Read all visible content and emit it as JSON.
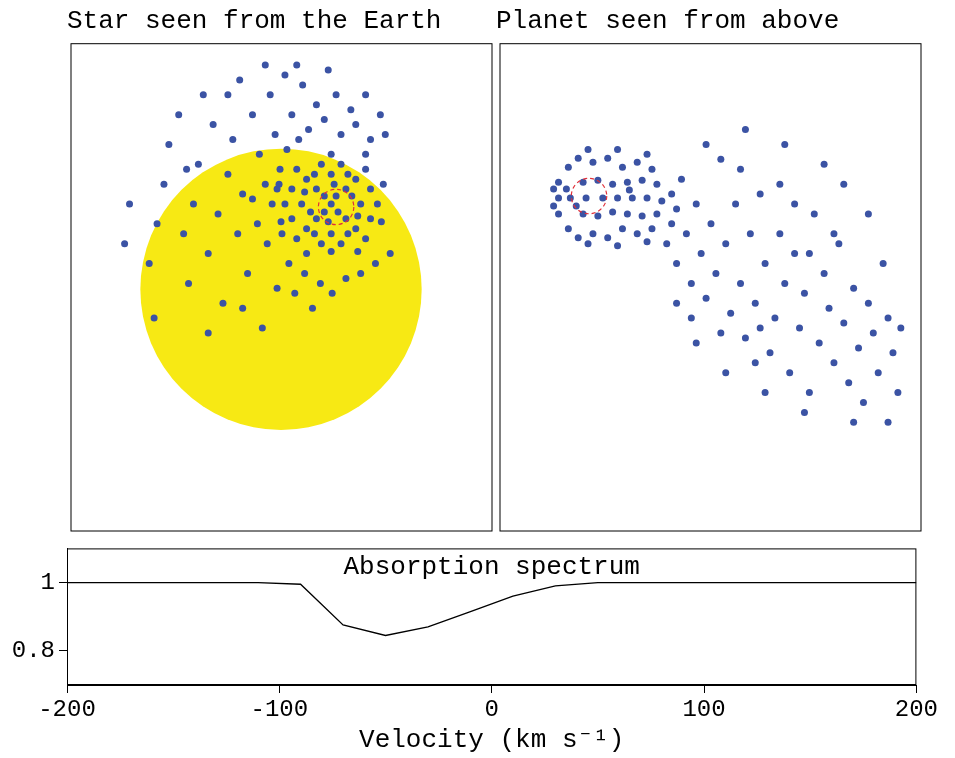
{
  "chart_data": [
    {
      "type": "scatter",
      "title": "Star seen from the Earth",
      "tick_labels": false,
      "xlim": [
        0,
        429
      ],
      "ylim": [
        0,
        492
      ],
      "series": [
        {
          "type": "circle",
          "color": "#f7e914",
          "center": [
            214,
            244
          ],
          "radius": 143
        },
        {
          "type": "scatter",
          "color": "#3b53a4",
          "values": [
            [
              265,
              330
            ],
            [
              250,
              345
            ],
            [
              280,
              345
            ],
            [
              250,
              315
            ],
            [
              280,
              315
            ],
            [
              265,
              360
            ],
            [
              265,
              300
            ],
            [
              235,
              330
            ],
            [
              295,
              330
            ],
            [
              240,
              355
            ],
            [
              290,
              355
            ],
            [
              240,
              305
            ],
            [
              290,
              305
            ],
            [
              255,
              370
            ],
            [
              275,
              370
            ],
            [
              255,
              290
            ],
            [
              275,
              290
            ],
            [
              225,
              345
            ],
            [
              305,
              345
            ],
            [
              225,
              315
            ],
            [
              305,
              315
            ],
            [
              230,
              365
            ],
            [
              300,
              365
            ],
            [
              230,
              295
            ],
            [
              300,
              295
            ],
            [
              258,
              338
            ],
            [
              272,
              322
            ],
            [
              244,
              322
            ],
            [
              286,
              338
            ],
            [
              262,
              312
            ],
            [
              268,
              350
            ],
            [
              248,
              300
            ],
            [
              282,
              300
            ],
            [
              248,
              360
            ],
            [
              282,
              360
            ],
            [
              312,
              330
            ],
            [
              218,
              330
            ],
            [
              265,
              380
            ],
            [
              265,
              282
            ],
            [
              240,
              280
            ],
            [
              292,
              282
            ],
            [
              212,
              350
            ],
            [
              318,
              350
            ],
            [
              214,
              312
            ],
            [
              316,
              312
            ],
            [
              270,
              338
            ],
            [
              258,
              322
            ],
            [
              238,
              342
            ],
            [
              292,
              318
            ],
            [
              300,
              380
            ],
            [
              55,
              290
            ],
            [
              80,
              270
            ],
            [
              85,
              215
            ],
            [
              95,
              350
            ],
            [
              100,
              390
            ],
            [
              110,
              420
            ],
            [
              115,
              300
            ],
            [
              120,
              250
            ],
            [
              125,
              330
            ],
            [
              130,
              370
            ],
            [
              135,
              440
            ],
            [
              140,
              280
            ],
            [
              145,
              410
            ],
            [
              150,
              320
            ],
            [
              155,
              230
            ],
            [
              160,
              360
            ],
            [
              165,
              395
            ],
            [
              170,
              300
            ],
            [
              172,
              455
            ],
            [
              175,
              340
            ],
            [
              180,
              260
            ],
            [
              185,
              420
            ],
            [
              190,
              310
            ],
            [
              192,
              380
            ],
            [
              195,
              205
            ],
            [
              198,
              350
            ],
            [
              200,
              290
            ],
            [
              203,
              440
            ],
            [
              205,
              330
            ],
            [
              208,
              400
            ],
            [
              210,
              245
            ],
            [
              213,
              365
            ],
            [
              215,
              300
            ],
            [
              218,
              460
            ],
            [
              220,
              385
            ],
            [
              222,
              270
            ],
            [
              225,
              420
            ],
            [
              228,
              240
            ],
            [
              232,
              395
            ],
            [
              236,
              450
            ],
            [
              238,
              260
            ],
            [
              242,
              405
            ],
            [
              246,
              225
            ],
            [
              250,
              430
            ],
            [
              254,
              250
            ],
            [
              258,
              415
            ],
            [
              262,
              465
            ],
            [
              266,
              240
            ],
            [
              270,
              440
            ],
            [
              275,
              400
            ],
            [
              280,
              255
            ],
            [
              285,
              425
            ],
            [
              290,
              410
            ],
            [
              295,
              260
            ],
            [
              300,
              440
            ],
            [
              305,
              395
            ],
            [
              310,
              270
            ],
            [
              315,
              420
            ],
            [
              320,
              400
            ],
            [
              325,
              280
            ],
            [
              140,
              200
            ],
            [
              175,
              225
            ],
            [
              118,
              365
            ],
            [
              160,
              440
            ],
            [
              88,
              310
            ],
            [
              198,
              470
            ],
            [
              230,
              470
            ],
            [
              60,
              330
            ],
            [
              210,
              345
            ],
            [
              185,
              335
            ]
          ]
        },
        {
          "type": "circle",
          "color": "#e0303a",
          "line_style": "dashed",
          "center": [
            270,
            327
          ],
          "radius": 18
        }
      ]
    },
    {
      "type": "scatter",
      "title": "Planet seen from above",
      "tick_labels": false,
      "xlim": [
        0,
        429
      ],
      "ylim": [
        0,
        492
      ],
      "series": [
        {
          "type": "scatter",
          "color": "#3b53a4",
          "values": [
            [
              60,
              336
            ],
            [
              60,
              320
            ],
            [
              60,
              352
            ],
            [
              70,
              305
            ],
            [
              70,
              367
            ],
            [
              72,
              336
            ],
            [
              80,
              296
            ],
            [
              80,
              376
            ],
            [
              85,
              320
            ],
            [
              85,
              352
            ],
            [
              88,
              336
            ],
            [
              95,
              300
            ],
            [
              95,
              372
            ],
            [
              100,
              318
            ],
            [
              100,
              354
            ],
            [
              105,
              336
            ],
            [
              110,
              296
            ],
            [
              110,
              376
            ],
            [
              115,
              322
            ],
            [
              115,
              350
            ],
            [
              120,
              336
            ],
            [
              125,
              305
            ],
            [
              125,
              367
            ],
            [
              130,
              320
            ],
            [
              130,
              352
            ],
            [
              135,
              336
            ],
            [
              140,
              300
            ],
            [
              140,
              372
            ],
            [
              145,
              318
            ],
            [
              145,
              354
            ],
            [
              150,
              336
            ],
            [
              155,
              305
            ],
            [
              155,
              365
            ],
            [
              160,
              320
            ],
            [
              160,
              350
            ],
            [
              165,
              333
            ],
            [
              90,
              385
            ],
            [
              120,
              385
            ],
            [
              150,
              380
            ],
            [
              90,
              290
            ],
            [
              120,
              288
            ],
            [
              150,
              292
            ],
            [
              55,
              345
            ],
            [
              55,
              328
            ],
            [
              175,
              340
            ],
            [
              175,
              310
            ],
            [
              180,
              325
            ],
            [
              68,
              345
            ],
            [
              78,
              328
            ],
            [
              132,
              344
            ],
            [
              170,
              290
            ],
            [
              180,
              270
            ],
            [
              185,
              355
            ],
            [
              190,
              300
            ],
            [
              195,
              250
            ],
            [
              200,
              330
            ],
            [
              205,
              280
            ],
            [
              210,
              235
            ],
            [
              215,
              310
            ],
            [
              220,
              260
            ],
            [
              225,
              375
            ],
            [
              230,
              290
            ],
            [
              235,
              220
            ],
            [
              240,
              330
            ],
            [
              245,
              250
            ],
            [
              250,
              195
            ],
            [
              255,
              300
            ],
            [
              260,
              230
            ],
            [
              265,
              340
            ],
            [
              270,
              270
            ],
            [
              275,
              180
            ],
            [
              280,
              215
            ],
            [
              285,
              300
            ],
            [
              290,
              250
            ],
            [
              295,
              160
            ],
            [
              300,
              280
            ],
            [
              305,
              205
            ],
            [
              310,
              240
            ],
            [
              315,
              140
            ],
            [
              320,
              320
            ],
            [
              325,
              190
            ],
            [
              330,
              260
            ],
            [
              335,
              225
            ],
            [
              340,
              170
            ],
            [
              345,
              290
            ],
            [
              350,
              210
            ],
            [
              355,
              150
            ],
            [
              360,
              245
            ],
            [
              365,
              185
            ],
            [
              370,
              130
            ],
            [
              375,
              230
            ],
            [
              380,
              200
            ],
            [
              385,
              160
            ],
            [
              390,
              270
            ],
            [
              395,
              215
            ],
            [
              400,
              180
            ],
            [
              405,
              140
            ],
            [
              408,
              205
            ],
            [
              210,
              390
            ],
            [
              250,
              405
            ],
            [
              290,
              390
            ],
            [
              330,
              370
            ],
            [
              350,
              350
            ],
            [
              230,
              160
            ],
            [
              270,
              140
            ],
            [
              310,
              120
            ],
            [
              200,
              190
            ],
            [
              260,
              170
            ],
            [
              300,
              330
            ],
            [
              340,
              300
            ],
            [
              375,
              320
            ],
            [
              195,
              215
            ],
            [
              245,
              365
            ],
            [
              285,
              350
            ],
            [
              315,
              280
            ],
            [
              360,
              110
            ],
            [
              180,
              230
            ],
            [
              225,
              200
            ],
            [
              265,
              205
            ],
            [
              395,
              110
            ]
          ]
        },
        {
          "type": "circle",
          "color": "#e0303a",
          "line_style": "dashed",
          "center": [
            91,
            338
          ],
          "radius": 18
        }
      ]
    },
    {
      "type": "line",
      "title": "Absorption spectrum",
      "x_label": "Velocity (km s⁻¹)",
      "color": "#000000",
      "x": [
        -200,
        -110,
        -90,
        -70,
        -50,
        -30,
        -10,
        10,
        30,
        50,
        200
      ],
      "values": [
        1,
        1,
        0.995,
        0.876,
        0.845,
        0.87,
        0.915,
        0.96,
        0.99,
        1,
        1
      ],
      "xlim": [
        -200,
        200
      ],
      "xticks": [
        -200,
        -100,
        0,
        100,
        200
      ],
      "ylim": [
        0.7,
        1.1
      ],
      "yticks": [
        0.8,
        1
      ]
    }
  ]
}
